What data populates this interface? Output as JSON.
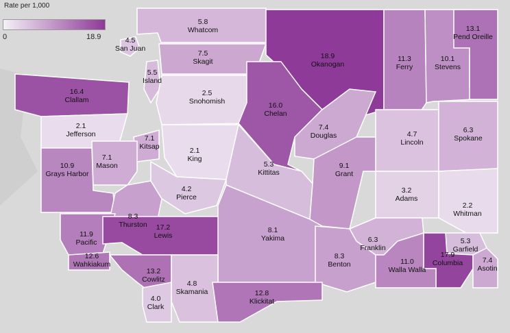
{
  "legend": {
    "title": "Rate per 1,000",
    "min": "0",
    "max": "18.9",
    "color_low": "#f4f0f6",
    "color_high": "#8e3a98"
  },
  "colors": {
    "background": "#d9d9d9",
    "border": "#ffffff"
  },
  "counties": [
    {
      "name": "Whatcom",
      "value": 5.8
    },
    {
      "name": "San Juan",
      "value": 4.5
    },
    {
      "name": "Skagit",
      "value": 7.5
    },
    {
      "name": "Island",
      "value": 5.5
    },
    {
      "name": "Okanogan",
      "value": 18.9
    },
    {
      "name": "Ferry",
      "value": 11.3
    },
    {
      "name": "Stevens",
      "value": 10.1
    },
    {
      "name": "Pend Oreille",
      "value": 13.1
    },
    {
      "name": "Clallam",
      "value": 16.4
    },
    {
      "name": "Snohomish",
      "value": 2.5
    },
    {
      "name": "Chelan",
      "value": 16.0
    },
    {
      "name": "Jefferson",
      "value": 2.1
    },
    {
      "name": "Douglas",
      "value": 7.4
    },
    {
      "name": "Lincoln",
      "value": 4.7
    },
    {
      "name": "Spokane",
      "value": 6.3
    },
    {
      "name": "Kitsap",
      "value": 7.1
    },
    {
      "name": "King",
      "value": 2.1
    },
    {
      "name": "Mason",
      "value": 7.1
    },
    {
      "name": "Grays Harbor",
      "value": 10.9
    },
    {
      "name": "Kittitas",
      "value": 5.3
    },
    {
      "name": "Grant",
      "value": 9.1
    },
    {
      "name": "Thurston",
      "value": 8.3
    },
    {
      "name": "Pierce",
      "value": 4.2
    },
    {
      "name": "Adams",
      "value": 3.2
    },
    {
      "name": "Whitman",
      "value": 2.2
    },
    {
      "name": "Pacific",
      "value": 11.9
    },
    {
      "name": "Lewis",
      "value": 17.2
    },
    {
      "name": "Yakima",
      "value": 8.1
    },
    {
      "name": "Franklin",
      "value": 6.3
    },
    {
      "name": "Garfield",
      "value": 5.3
    },
    {
      "name": "Wahkiakum",
      "value": 12.6
    },
    {
      "name": "Columbia",
      "value": 17.9
    },
    {
      "name": "Benton",
      "value": 8.3
    },
    {
      "name": "Walla Walla",
      "value": 11.0
    },
    {
      "name": "Asotin",
      "value": 7.4
    },
    {
      "name": "Cowlitz",
      "value": 13.2
    },
    {
      "name": "Skamania",
      "value": 4.8
    },
    {
      "name": "Clark",
      "value": 4.0
    },
    {
      "name": "Klickitat",
      "value": 12.8
    }
  ]
}
